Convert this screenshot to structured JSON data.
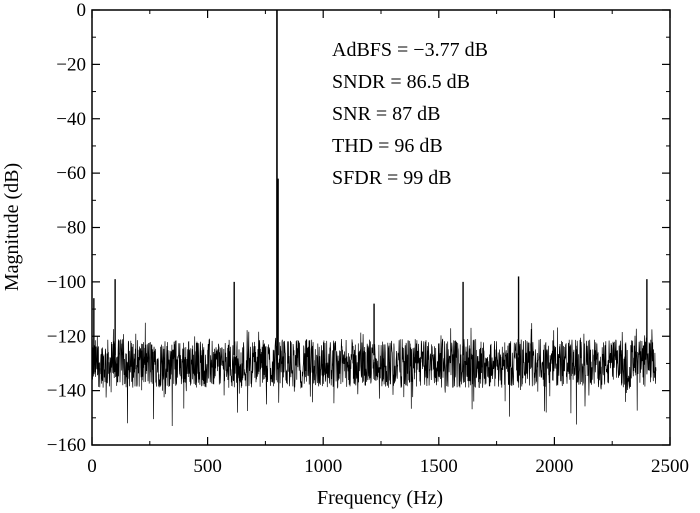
{
  "chart_data": {
    "type": "line",
    "title": "",
    "xlabel": "Frequency (Hz)",
    "ylabel": "Magnitude (dB)",
    "xlim": [
      0,
      2500
    ],
    "ylim": [
      -160,
      0
    ],
    "x_ticks": [
      0,
      500,
      1000,
      1500,
      2000,
      2500
    ],
    "y_ticks": [
      0,
      -20,
      -40,
      -60,
      -80,
      -100,
      -120,
      -140,
      -160
    ],
    "x_tick_labels": [
      "0",
      "500",
      "1000",
      "1500",
      "2000",
      "2500"
    ],
    "y_tick_labels": [
      "0",
      "−20",
      "−40",
      "−60",
      "−80",
      "−100",
      "−120",
      "−140",
      "−160"
    ],
    "grid": false,
    "legend": "none",
    "annotations": [
      "AdBFS = −3.77 dB",
      "SNDR = 86.5 dB",
      "SNR = 87 dB",
      "THD = 96 dB",
      "SFDR = 99 dB"
    ],
    "series": [
      {
        "noise_floor": {
          "x_range": [
            0,
            2440
          ],
          "mean_db": -130,
          "min_db": -160,
          "max_db": -115
        },
        "peaks": [
          {
            "x": 800,
            "y": 0
          },
          {
            "x": 805,
            "y": -62
          },
          {
            "x": 8,
            "y": -106
          },
          {
            "x": 100,
            "y": -99
          },
          {
            "x": 615,
            "y": -100
          },
          {
            "x": 1220,
            "y": -108
          },
          {
            "x": 1605,
            "y": -100
          },
          {
            "x": 1845,
            "y": -98
          },
          {
            "x": 2400,
            "y": -99
          }
        ]
      }
    ]
  },
  "colors": {
    "line": "#000000",
    "axis": "#000000",
    "background": "#ffffff"
  }
}
